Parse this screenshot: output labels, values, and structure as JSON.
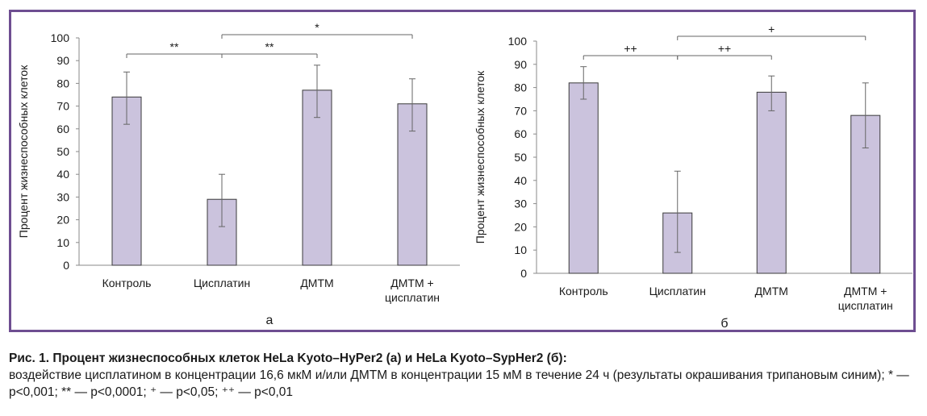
{
  "chart_data": [
    {
      "type": "bar",
      "panel_label": "а",
      "ylabel": "Процент жизнеспособных клеток",
      "ylim": [
        0,
        100
      ],
      "yticks": [
        "0",
        "10",
        "20",
        "30",
        "40",
        "50",
        "60",
        "70",
        "80",
        "90",
        "100"
      ],
      "categories": [
        [
          "Контроль"
        ],
        [
          "Цисплатин"
        ],
        [
          "ДМТМ"
        ],
        [
          "ДМТМ +",
          "цисплатин"
        ]
      ],
      "values": [
        74,
        29,
        77,
        71
      ],
      "error_low": [
        62,
        17,
        65,
        59
      ],
      "error_high": [
        85,
        40,
        88,
        82
      ],
      "significance": [
        {
          "from": 0,
          "to": 1,
          "label": "**",
          "level": 0
        },
        {
          "from": 1,
          "to": 2,
          "label": "**",
          "level": 0
        },
        {
          "from": 1,
          "to": 3,
          "label": "*",
          "level": 1
        }
      ],
      "bar_color": "#cbc3dd",
      "grid": false
    },
    {
      "type": "bar",
      "panel_label": "б",
      "ylabel": "Процент жизнеспособных клеток",
      "ylim": [
        0,
        100
      ],
      "yticks": [
        "0",
        "10",
        "20",
        "30",
        "40",
        "50",
        "60",
        "70",
        "80",
        "90",
        "100"
      ],
      "categories": [
        [
          "Контроль"
        ],
        [
          "Цисплатин"
        ],
        [
          "ДМТМ"
        ],
        [
          "ДМТМ +",
          "цисплатин"
        ]
      ],
      "values": [
        82,
        26,
        78,
        68
      ],
      "error_low": [
        75,
        9,
        70,
        54
      ],
      "error_high": [
        89,
        44,
        85,
        82
      ],
      "significance": [
        {
          "from": 0,
          "to": 1,
          "label": "++",
          "level": 0
        },
        {
          "from": 1,
          "to": 2,
          "label": "++",
          "level": 0
        },
        {
          "from": 1,
          "to": 3,
          "label": "+",
          "level": 1
        }
      ],
      "bar_color": "#cbc3dd",
      "grid": false
    }
  ],
  "frame_color": "#6e4e91",
  "caption": {
    "title": "Рис. 1. Процент жизнеспособных клеток HeLa Kyoto–HyPer2 (а) и HeLa Kyoto–SypHer2 (б):",
    "body": "воздействие цисплатином в концентрации 16,6 мкМ и/или ДМТМ в концентрации 15 мМ в течение 24 ч (результаты окрашивания трипановым синим); * — p<0,001; ** — p<0,0001; ⁺ — p<0,05; ⁺⁺ — p<0,01"
  }
}
